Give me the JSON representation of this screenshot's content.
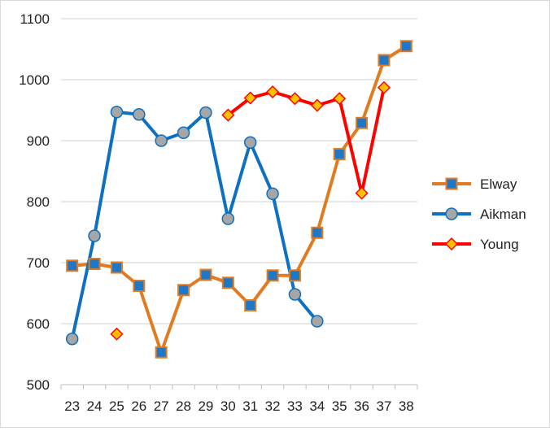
{
  "chart_data": {
    "type": "line",
    "x": [
      23,
      24,
      25,
      26,
      27,
      28,
      29,
      30,
      31,
      32,
      33,
      34,
      35,
      36,
      37,
      38
    ],
    "x_tick_labels": [
      "23",
      "24",
      "25",
      "26",
      "27",
      "28",
      "29",
      "30",
      "31",
      "32",
      "33",
      "34",
      "35",
      "36",
      "37",
      "38"
    ],
    "y_tick_labels": [
      "500",
      "600",
      "700",
      "800",
      "900",
      "1000",
      "1100"
    ],
    "ylim": [
      500,
      1100
    ],
    "y_ticks": [
      500,
      600,
      700,
      800,
      900,
      1000,
      1100
    ],
    "grid": "horizontal",
    "legend_position": "right",
    "series": [
      {
        "name": "Elway",
        "color": "#E07B22",
        "marker": "square",
        "marker_fill": "#1F77C8",
        "values": [
          695,
          698,
          692,
          662,
          553,
          655,
          680,
          667,
          630,
          679,
          679,
          749,
          878,
          929,
          1032,
          1055
        ]
      },
      {
        "name": "Aikman",
        "color": "#0E70C0",
        "marker": "circle",
        "marker_fill": "#A6A6A6",
        "values": [
          575,
          744,
          947,
          943,
          900,
          913,
          946,
          772,
          897,
          813,
          648,
          604,
          null,
          null,
          null,
          null
        ]
      },
      {
        "name": "Young",
        "color": "#FF0000",
        "marker": "diamond",
        "marker_fill": "#FFC000",
        "values": [
          null,
          null,
          583,
          null,
          null,
          null,
          null,
          942,
          970,
          980,
          969,
          958,
          969,
          814,
          987,
          null
        ]
      }
    ]
  }
}
